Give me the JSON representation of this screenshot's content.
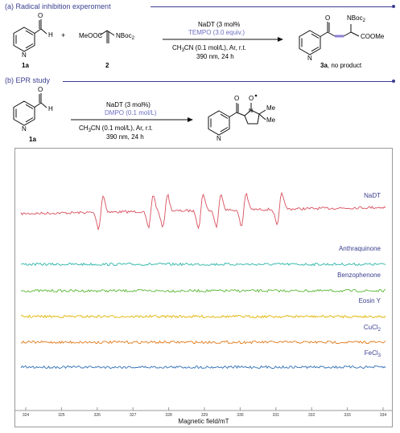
{
  "section_a": {
    "header": "(a) Radical inhibition experoment",
    "reactant1_label": "1a",
    "plus": "+",
    "reactant2_label": "2",
    "reactant2_ester": "MeOOC",
    "reactant2_amine": "NBoc",
    "reactant2_amine_sub": "2",
    "cond1": "NaDT (3 mol%",
    "cond2": "TEMPO (3.0 equiv.)",
    "cond3_pre": "CH",
    "cond3_sub": "3",
    "cond3_post": "CN (0.1 mol/L), Ar, r.t.",
    "cond4": "390 nm, 24 h",
    "product_label": "3a",
    "product_note": ", no product",
    "product_amine": "NBoc",
    "product_amine_sub": "2",
    "product_ester": "COOMe",
    "aldehyde_h": "H",
    "aldehyde_o": "O",
    "product_o": "O"
  },
  "section_b": {
    "header": "(b) EPR study",
    "reactant_label": "1a",
    "cond1": "NaDT (3 mol%)",
    "cond2": "DMPO (0.1 mol/L)",
    "cond3_pre": "CH",
    "cond3_sub": "3",
    "cond3_post": "CN (0.1 mol/L), Ar, r.t.",
    "cond4": "390 nm, 24 h",
    "aldehyde_h": "H",
    "aldehyde_o": "O",
    "product_o": "O",
    "product_n": "N",
    "product_nox": "O",
    "product_me1": "Me",
    "product_me2": "Me"
  },
  "colors": {
    "accent": "#3a3f8f",
    "condition_blue": "#6b6fc2",
    "wedge": "#8b7fd6"
  },
  "chart_data": {
    "type": "line",
    "xlabel": "Magnetic field/mT",
    "ylabel": "",
    "x_ticks": [
      "324",
      "325",
      "326",
      "327",
      "328",
      "329",
      "330",
      "331",
      "332",
      "333",
      "334"
    ],
    "xlim": [
      324,
      334
    ],
    "series": [
      {
        "name": "NaDT",
        "color": "#d9505d",
        "peaks": [
          326.1,
          327.5,
          327.9,
          328.9,
          329.4,
          330.1,
          331.1
        ]
      },
      {
        "name": "Anthraquinone",
        "color": "#2bb5a8",
        "peaks": []
      },
      {
        "name": "Benzophenone",
        "color": "#5ab835",
        "peaks": []
      },
      {
        "name": "Eosin Y",
        "color": "#e0b400",
        "peaks": []
      },
      {
        "name": "CuCl",
        "name_sub": "2",
        "color": "#e07a1a",
        "peaks": []
      },
      {
        "name": "FeCl",
        "name_sub": "3",
        "color": "#2f6fb5",
        "peaks": []
      }
    ]
  }
}
